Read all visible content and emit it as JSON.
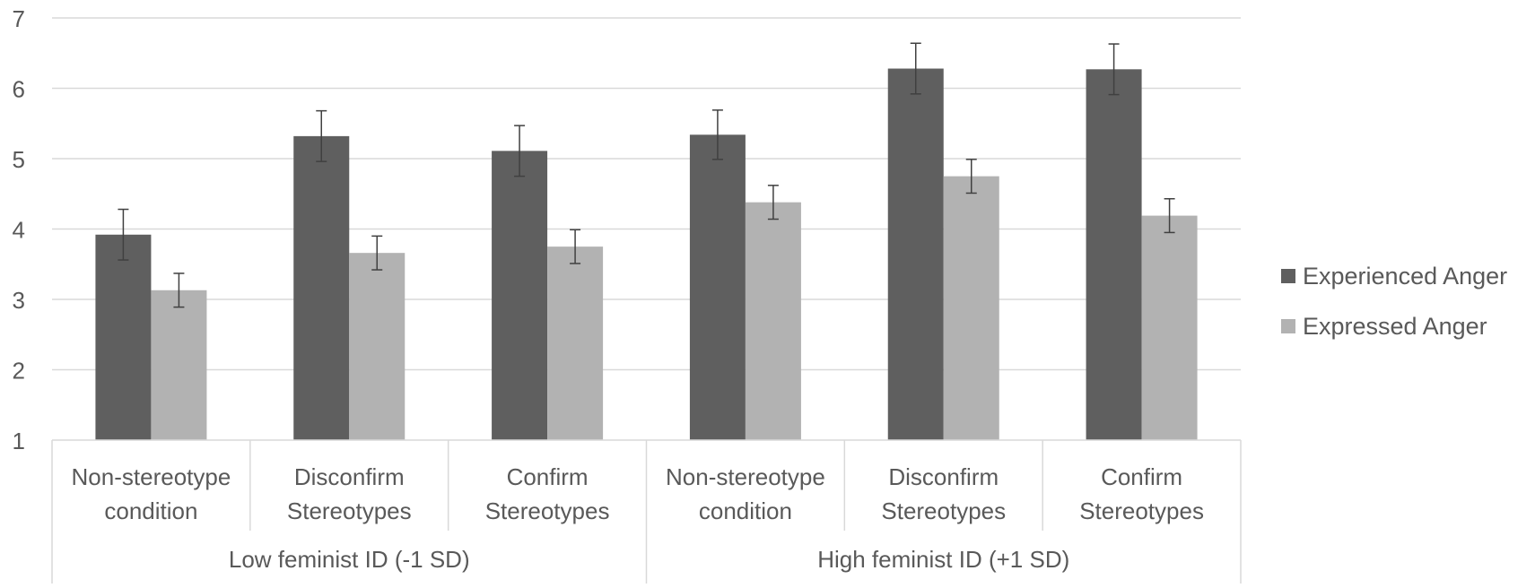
{
  "chart_data": {
    "type": "bar",
    "title": "",
    "xlabel": "",
    "ylabel": "",
    "ylim": [
      1,
      7
    ],
    "yticks": [
      "1",
      "2",
      "3",
      "4",
      "5",
      "6",
      "7"
    ],
    "grid": true,
    "legend_position": "right",
    "groups": [
      {
        "label": "Low feminist ID (-1 SD)",
        "categories": [
          0,
          1,
          2
        ]
      },
      {
        "label": "High feminist ID (+1 SD)",
        "categories": [
          3,
          4,
          5
        ]
      }
    ],
    "categories": [
      [
        "Non-stereotype",
        "condition"
      ],
      [
        "Disconfirm",
        "Stereotypes"
      ],
      [
        "Confirm",
        "Stereotypes"
      ],
      [
        "Non-stereotype",
        "condition"
      ],
      [
        "Disconfirm",
        "Stereotypes"
      ],
      [
        "Confirm",
        "Stereotypes"
      ]
    ],
    "series": [
      {
        "name": "Experienced Anger",
        "color": "#5f5f5f",
        "values": [
          3.92,
          5.32,
          5.11,
          5.34,
          6.28,
          6.27
        ],
        "errors": [
          0.36,
          0.36,
          0.36,
          0.35,
          0.36,
          0.36
        ]
      },
      {
        "name": "Expressed Anger",
        "color": "#b2b2b2",
        "values": [
          3.13,
          3.66,
          3.75,
          4.38,
          4.75,
          4.19
        ],
        "errors": [
          0.24,
          0.24,
          0.24,
          0.24,
          0.24,
          0.24
        ]
      }
    ]
  }
}
